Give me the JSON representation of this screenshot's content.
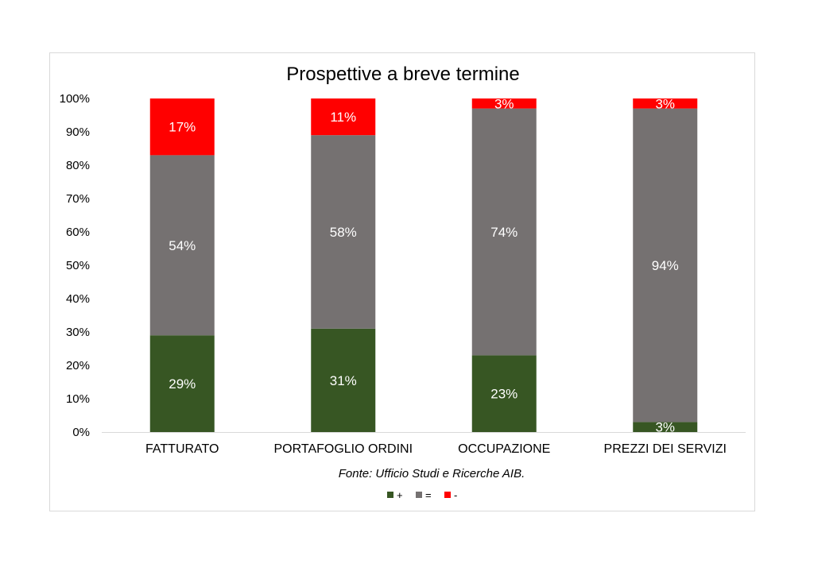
{
  "chart_data": {
    "type": "bar",
    "stacked": true,
    "title": "Prospettive a breve termine",
    "source_note": "Fonte: Ufficio Studi e Ricerche AIB.",
    "categories": [
      "FATTURATO",
      "PORTAFOGLIO ORDINI",
      "OCCUPAZIONE",
      "PREZZI DEI SERVIZI"
    ],
    "series": [
      {
        "name": "+",
        "color": "#375623",
        "values": [
          29,
          31,
          23,
          3
        ],
        "labels": [
          "29%",
          "31%",
          "23%",
          "3%"
        ]
      },
      {
        "name": "=",
        "color": "#757171",
        "values": [
          54,
          58,
          74,
          94
        ],
        "labels": [
          "54%",
          "58%",
          "74%",
          "94%"
        ]
      },
      {
        "name": "-",
        "color": "#ff0000",
        "values": [
          17,
          11,
          3,
          3
        ],
        "labels": [
          "17%",
          "11%",
          "3%",
          "3%"
        ]
      }
    ],
    "ylim": [
      0,
      100
    ],
    "yticks": [
      "0%",
      "10%",
      "20%",
      "30%",
      "40%",
      "50%",
      "60%",
      "70%",
      "80%",
      "90%",
      "100%"
    ],
    "xlabel": "",
    "ylabel": "",
    "grid": false,
    "legend": "bottom"
  }
}
